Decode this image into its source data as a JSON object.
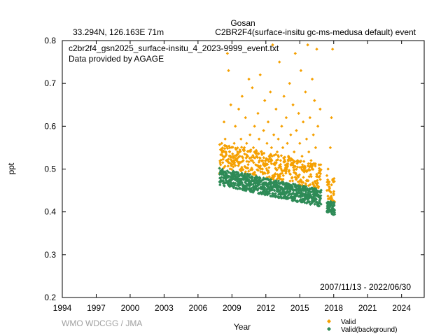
{
  "chart_data": {
    "type": "scatter",
    "title": "Gosan",
    "subtitle_left": "33.294N, 126.163E 71m",
    "subtitle_right": "C2BR2F4(surface-insitu gc-ms-medusa default) event",
    "file_label": "c2br2f4_gsn2025_surface-insitu_4_2023-9999_event.txt",
    "provider_label": "Data provided by AGAGE",
    "date_range_label": "2007/11/13 - 2022/06/30",
    "credit": "WMO WDCGG / JMA",
    "xlabel": "Year",
    "ylabel": "ppt",
    "xlim": [
      1994,
      2026
    ],
    "ylim": [
      0.2,
      0.8
    ],
    "x_ticks": [
      "1994",
      "1997",
      "2000",
      "2003",
      "2006",
      "2009",
      "2012",
      "2015",
      "2018",
      "2021",
      "2024"
    ],
    "y_ticks": [
      "0.2",
      "0.3",
      "0.4",
      "0.5",
      "0.6",
      "0.7",
      "0.8"
    ],
    "legend_position": "bottom-right, outside plot",
    "grid": false,
    "series": [
      {
        "name": "Valid",
        "color": "#f5a000",
        "marker": "diamond",
        "points": [
          [
            2007.9,
            0.49
          ],
          [
            2008.0,
            0.51
          ],
          [
            2008.1,
            0.56
          ],
          [
            2008.2,
            0.53
          ],
          [
            2008.3,
            0.61
          ],
          [
            2008.4,
            0.57
          ],
          [
            2008.5,
            0.52
          ],
          [
            2008.6,
            0.77
          ],
          [
            2008.7,
            0.73
          ],
          [
            2008.8,
            0.54
          ],
          [
            2008.9,
            0.65
          ],
          [
            2009.0,
            0.51
          ],
          [
            2009.1,
            0.53
          ],
          [
            2009.2,
            0.56
          ],
          [
            2009.3,
            0.6
          ],
          [
            2009.4,
            0.52
          ],
          [
            2009.5,
            0.54
          ],
          [
            2009.6,
            0.64
          ],
          [
            2009.7,
            0.53
          ],
          [
            2009.8,
            0.57
          ],
          [
            2009.9,
            0.67
          ],
          [
            2010.0,
            0.52
          ],
          [
            2010.1,
            0.55
          ],
          [
            2010.2,
            0.62
          ],
          [
            2010.3,
            0.56
          ],
          [
            2010.4,
            0.53
          ],
          [
            2010.5,
            0.71
          ],
          [
            2010.6,
            0.58
          ],
          [
            2010.7,
            0.52
          ],
          [
            2010.8,
            0.69
          ],
          [
            2010.9,
            0.55
          ],
          [
            2011.0,
            0.6
          ],
          [
            2011.1,
            0.51
          ],
          [
            2011.2,
            0.53
          ],
          [
            2011.3,
            0.63
          ],
          [
            2011.4,
            0.57
          ],
          [
            2011.5,
            0.72
          ],
          [
            2011.6,
            0.54
          ],
          [
            2011.7,
            0.5
          ],
          [
            2011.8,
            0.59
          ],
          [
            2011.9,
            0.66
          ],
          [
            2012.0,
            0.52
          ],
          [
            2012.1,
            0.56
          ],
          [
            2012.2,
            0.61
          ],
          [
            2012.3,
            0.53
          ],
          [
            2012.4,
            0.68
          ],
          [
            2012.5,
            0.55
          ],
          [
            2012.6,
            0.79
          ],
          [
            2012.7,
            0.58
          ],
          [
            2012.8,
            0.51
          ],
          [
            2012.9,
            0.64
          ],
          [
            2013.0,
            0.54
          ],
          [
            2013.1,
            0.57
          ],
          [
            2013.2,
            0.75
          ],
          [
            2013.3,
            0.52
          ],
          [
            2013.4,
            0.6
          ],
          [
            2013.5,
            0.55
          ],
          [
            2013.6,
            0.67
          ],
          [
            2013.7,
            0.5
          ],
          [
            2013.8,
            0.62
          ],
          [
            2013.9,
            0.56
          ],
          [
            2014.0,
            0.53
          ],
          [
            2014.1,
            0.7
          ],
          [
            2014.2,
            0.58
          ],
          [
            2014.3,
            0.51
          ],
          [
            2014.4,
            0.65
          ],
          [
            2014.5,
            0.54
          ],
          [
            2014.6,
            0.77
          ],
          [
            2014.7,
            0.59
          ],
          [
            2014.8,
            0.52
          ],
          [
            2014.9,
            0.63
          ],
          [
            2015.0,
            0.56
          ],
          [
            2015.1,
            0.73
          ],
          [
            2015.2,
            0.53
          ],
          [
            2015.3,
            0.61
          ],
          [
            2015.4,
            0.5
          ],
          [
            2015.5,
            0.68
          ],
          [
            2015.6,
            0.57
          ],
          [
            2015.7,
            0.79
          ],
          [
            2015.8,
            0.54
          ],
          [
            2015.9,
            0.62
          ],
          [
            2016.0,
            0.52
          ],
          [
            2016.1,
            0.71
          ],
          [
            2016.2,
            0.58
          ],
          [
            2016.3,
            0.66
          ],
          [
            2016.4,
            0.55
          ],
          [
            2016.5,
            0.78
          ],
          [
            2016.6,
            0.6
          ],
          [
            2016.7,
            0.51
          ],
          [
            2016.8,
            0.64
          ],
          [
            2017.4,
            0.45
          ],
          [
            2017.5,
            0.5
          ],
          [
            2017.6,
            0.47
          ],
          [
            2017.7,
            0.55
          ],
          [
            2017.8,
            0.62
          ],
          [
            2017.9,
            0.78
          ],
          [
            2018.0,
            0.44
          ]
        ]
      },
      {
        "name": "Valid(background)",
        "color": "#2e8b57",
        "marker": "diamond",
        "trend": {
          "segments": [
            {
              "x0": 2007.9,
              "x1": 2016.9,
              "y0": 0.482,
              "y1": 0.432,
              "spread": 0.02
            },
            {
              "x0": 2017.4,
              "x1": 2018.1,
              "y0": 0.412,
              "y1": 0.408,
              "spread": 0.015
            }
          ]
        }
      }
    ]
  }
}
